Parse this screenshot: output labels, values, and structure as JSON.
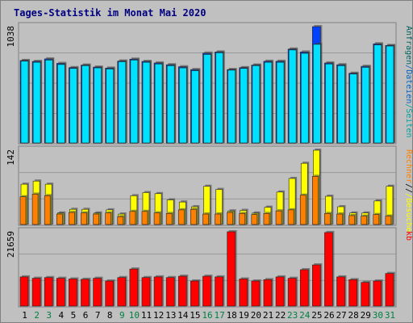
{
  "chart_data": {
    "type": "bar",
    "title": "Tages-Statistik im Monat Mai 2020",
    "categories": [
      "1",
      "2",
      "3",
      "4",
      "5",
      "6",
      "7",
      "8",
      "9",
      "10",
      "11",
      "12",
      "13",
      "14",
      "15",
      "16",
      "17",
      "18",
      "19",
      "20",
      "21",
      "22",
      "23",
      "24",
      "25",
      "26",
      "27",
      "28",
      "29",
      "30",
      "31"
    ],
    "weekend_days": [
      "2",
      "3",
      "9",
      "10",
      "16",
      "17",
      "23",
      "24",
      "30",
      "31"
    ],
    "colors": {
      "title": "#000080",
      "weekday_tick": "#000000",
      "weekend_tick": "#008040",
      "anfragen": "#0040ff",
      "dateien": "#00e0ff",
      "seiten": "#00b0b0",
      "besuche": "#ffff00",
      "rechner": "#ff8000",
      "kb": "#ff0000",
      "panel_bg": "#c0c0c0",
      "grid": "#999999"
    },
    "panels": [
      {
        "id": "requests",
        "max_label": "1038",
        "ymax": 1038,
        "legend": [
          {
            "text": "Anfragen",
            "color": "#006060"
          },
          {
            "text": "Dateien",
            "color": "#0060c0"
          },
          {
            "text": "Seiten",
            "color": "#00a0a0"
          }
        ],
        "series": [
          {
            "name": "Anfragen",
            "values": [
              736,
              728,
              750,
              710,
              672,
              695,
              677,
              668,
              731,
              748,
              728,
              714,
              698,
              680,
              655,
              802,
              812,
              655,
              672,
              695,
              729,
              729,
              838,
              812,
              1038,
              714,
              698,
              622,
              684,
              885,
              870
            ]
          },
          {
            "name": "Dateien",
            "values": [
              730,
              720,
              740,
              700,
              665,
              690,
              670,
              660,
              725,
              740,
              720,
              705,
              690,
              670,
              645,
              790,
              805,
              650,
              665,
              690,
              720,
              720,
              830,
              800,
              880,
              705,
              690,
              615,
              675,
              875,
              865
            ]
          }
        ]
      },
      {
        "id": "visits",
        "max_label": "142",
        "ymax": 142,
        "legend": [
          {
            "text": "Rechner",
            "color": "#ff8000"
          },
          {
            "text": "/",
            "color": "#000000"
          },
          {
            "text": "Besuche",
            "color": "#ffff00"
          }
        ],
        "series": [
          {
            "name": "Besuche",
            "values": [
              77,
              83,
              77,
              22,
              29,
              29,
              22,
              28,
              20,
              55,
              61,
              59,
              47,
              43,
              34,
              73,
              67,
              26,
              27,
              22,
              33,
              62,
              88,
              117,
              142,
              54,
              34,
              22,
              22,
              45,
              73
            ]
          },
          {
            "name": "Rechner",
            "values": [
              53,
              58,
              55,
              20,
              23,
              22,
              20,
              22,
              15,
              25,
              25,
              22,
              21,
              28,
              29,
              20,
              20,
              23,
              21,
              19,
              21,
              26,
              28,
              56,
              92,
              21,
              20,
              17,
              16,
              19,
              16
            ]
          }
        ]
      },
      {
        "id": "traffic",
        "max_label": "21659",
        "ymax": 21659,
        "legend": [
          {
            "text": "kb",
            "color": "#ff0000"
          }
        ],
        "series": [
          {
            "name": "kb",
            "values": [
              8500,
              8100,
              8300,
              8100,
              7900,
              7800,
              8100,
              7300,
              8300,
              10800,
              8300,
              8500,
              8300,
              8700,
              7300,
              8700,
              8500,
              21659,
              7900,
              7300,
              7700,
              8500,
              8100,
              10600,
              12000,
              21440,
              8500,
              7700,
              6900,
              7300,
              9500
            ]
          }
        ]
      }
    ]
  }
}
